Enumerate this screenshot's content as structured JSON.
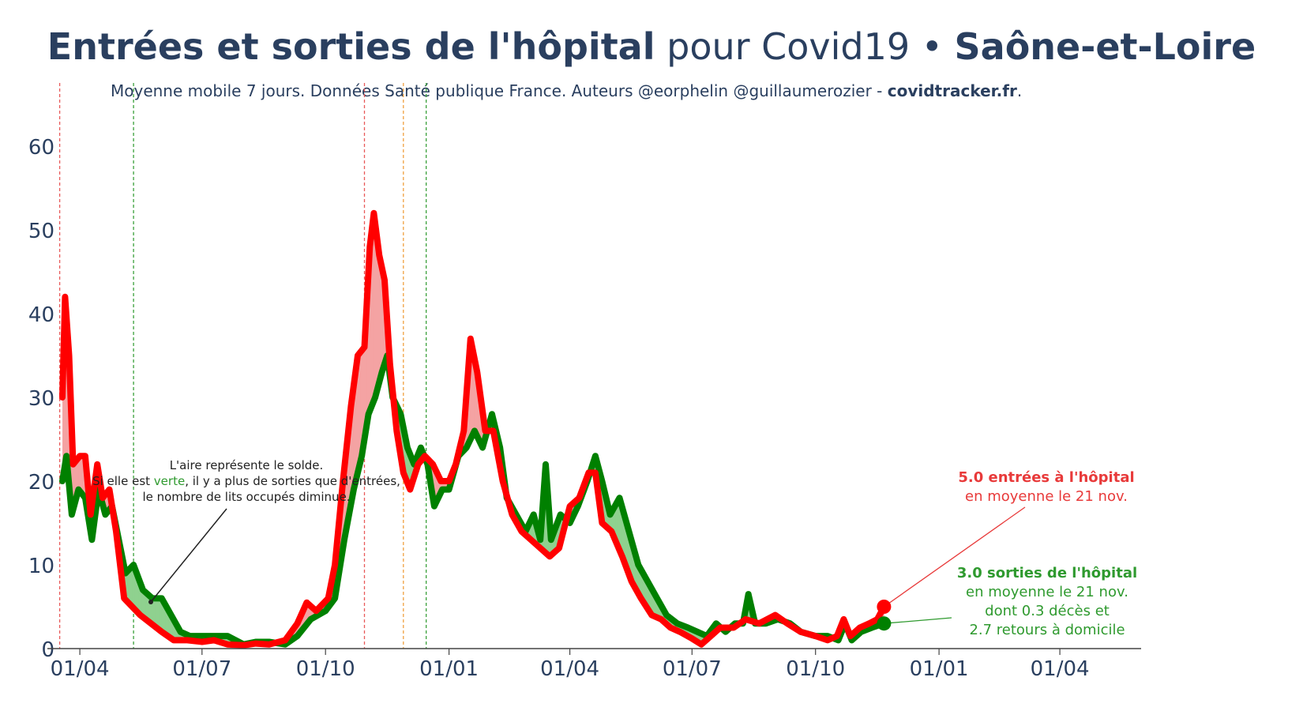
{
  "title": {
    "part1": "Entrées et sorties de l'hôpital",
    "part2": " pour Covid19 • ",
    "part3": "Saône-et-Loire"
  },
  "subtitle": {
    "text": "Moyenne mobile 7 jours. Données Santé publique France. Auteurs @eorphelin @guillaumerozier - ",
    "site": "covidtracker.fr",
    "end": "."
  },
  "annotations": {
    "explain_line1": "L'aire représente le solde.",
    "explain_line2a": "Si elle est ",
    "explain_line2_green": "verte",
    "explain_line2b": ", il y a plus de sorties que d'entrées,",
    "explain_line3": "le nombre de lits occupés diminue.",
    "entries_bold": "5.0 entrées à l'hôpital",
    "entries_sub": "en moyenne le 21 nov.",
    "exits_bold": "3.0 sorties de l'hôpital",
    "exits_sub1": "en moyenne le 21 nov.",
    "exits_sub2": "dont 0.3 décès et",
    "exits_sub3": "2.7 retours à domicile"
  },
  "colors": {
    "entries": "#ff0000",
    "exits": "#008000",
    "fill_red": "#f4a3a3",
    "fill_green": "#8fd18f",
    "text": "#2a3f5f",
    "annot_red": "#e83a3a",
    "annot_green": "#2f9a2f"
  },
  "chart_data": {
    "type": "line",
    "x_start": "2020-03-19",
    "y_range": [
      0,
      67
    ],
    "y_ticks": [
      0,
      10,
      20,
      30,
      40,
      50,
      60
    ],
    "x_ticks": [
      "01/04",
      "01/07",
      "01/10",
      "01/01",
      "01/04",
      "01/07",
      "01/10",
      "01/01",
      "01/04"
    ],
    "x_tick_dates": [
      "2020-04-01",
      "2020-07-01",
      "2020-10-01",
      "2021-01-01",
      "2021-04-01",
      "2021-07-01",
      "2021-10-01",
      "2022-01-01",
      "2022-04-01"
    ],
    "vertical_lines": [
      {
        "date": "2020-03-17",
        "color": "#e85a5a"
      },
      {
        "date": "2020-05-11",
        "color": "#3aa03a"
      },
      {
        "date": "2020-10-30",
        "color": "#e85a5a"
      },
      {
        "date": "2020-11-28",
        "color": "#f0a040"
      },
      {
        "date": "2020-12-15",
        "color": "#3aa03a"
      }
    ],
    "series": [
      {
        "name": "entrées à l'hôpital",
        "color": "#ff0000",
        "points": [
          [
            "2020-03-19",
            30
          ],
          [
            "2020-03-21",
            42
          ],
          [
            "2020-03-24",
            35
          ],
          [
            "2020-03-27",
            22
          ],
          [
            "2020-04-01",
            23
          ],
          [
            "2020-04-05",
            23
          ],
          [
            "2020-04-09",
            16
          ],
          [
            "2020-04-14",
            22
          ],
          [
            "2020-04-18",
            18
          ],
          [
            "2020-04-23",
            19
          ],
          [
            "2020-04-28",
            14
          ],
          [
            "2020-05-04",
            6
          ],
          [
            "2020-05-10",
            5
          ],
          [
            "2020-05-16",
            4
          ],
          [
            "2020-05-24",
            3
          ],
          [
            "2020-06-01",
            2
          ],
          [
            "2020-06-10",
            1
          ],
          [
            "2020-06-20",
            1
          ],
          [
            "2020-07-01",
            0.8
          ],
          [
            "2020-07-10",
            1
          ],
          [
            "2020-07-20",
            0.5
          ],
          [
            "2020-08-01",
            0.4
          ],
          [
            "2020-08-10",
            0.6
          ],
          [
            "2020-08-20",
            0.5
          ],
          [
            "2020-09-01",
            1
          ],
          [
            "2020-09-10",
            3
          ],
          [
            "2020-09-17",
            5.5
          ],
          [
            "2020-09-24",
            4.5
          ],
          [
            "2020-10-03",
            6
          ],
          [
            "2020-10-08",
            10
          ],
          [
            "2020-10-14",
            20
          ],
          [
            "2020-10-20",
            29
          ],
          [
            "2020-10-25",
            35
          ],
          [
            "2020-10-30",
            36
          ],
          [
            "2020-11-03",
            48
          ],
          [
            "2020-11-06",
            52
          ],
          [
            "2020-11-10",
            47
          ],
          [
            "2020-11-14",
            44
          ],
          [
            "2020-11-18",
            34
          ],
          [
            "2020-11-23",
            26
          ],
          [
            "2020-11-28",
            21
          ],
          [
            "2020-12-03",
            19
          ],
          [
            "2020-12-09",
            22
          ],
          [
            "2020-12-14",
            23
          ],
          [
            "2020-12-20",
            22
          ],
          [
            "2020-12-26",
            20
          ],
          [
            "2021-01-01",
            20
          ],
          [
            "2021-01-06",
            22
          ],
          [
            "2021-01-12",
            26
          ],
          [
            "2021-01-17",
            37
          ],
          [
            "2021-01-22",
            33
          ],
          [
            "2021-01-28",
            26
          ],
          [
            "2021-02-03",
            26
          ],
          [
            "2021-02-10",
            20
          ],
          [
            "2021-02-17",
            16
          ],
          [
            "2021-02-24",
            14
          ],
          [
            "2021-03-03",
            13
          ],
          [
            "2021-03-10",
            12
          ],
          [
            "2021-03-17",
            11
          ],
          [
            "2021-03-24",
            12
          ],
          [
            "2021-04-01",
            17
          ],
          [
            "2021-04-08",
            18
          ],
          [
            "2021-04-15",
            21
          ],
          [
            "2021-04-20",
            21
          ],
          [
            "2021-04-25",
            15
          ],
          [
            "2021-05-02",
            14
          ],
          [
            "2021-05-10",
            11
          ],
          [
            "2021-05-17",
            8
          ],
          [
            "2021-05-24",
            6
          ],
          [
            "2021-06-01",
            4
          ],
          [
            "2021-06-08",
            3.5
          ],
          [
            "2021-06-15",
            2.5
          ],
          [
            "2021-06-22",
            2
          ],
          [
            "2021-07-01",
            1.2
          ],
          [
            "2021-07-08",
            0.5
          ],
          [
            "2021-07-15",
            1.5
          ],
          [
            "2021-07-22",
            2.5
          ],
          [
            "2021-08-01",
            2.5
          ],
          [
            "2021-08-10",
            3.5
          ],
          [
            "2021-08-20",
            3
          ],
          [
            "2021-09-01",
            4
          ],
          [
            "2021-09-10",
            3
          ],
          [
            "2021-09-20",
            2
          ],
          [
            "2021-10-01",
            1.5
          ],
          [
            "2021-10-10",
            1
          ],
          [
            "2021-10-17",
            1.5
          ],
          [
            "2021-10-22",
            3.5
          ],
          [
            "2021-10-27",
            1.5
          ],
          [
            "2021-11-03",
            2.5
          ],
          [
            "2021-11-10",
            3
          ],
          [
            "2021-11-16",
            3.5
          ],
          [
            "2021-11-21",
            5
          ]
        ]
      },
      {
        "name": "sorties de l'hôpital",
        "color": "#008000",
        "points": [
          [
            "2020-03-19",
            20
          ],
          [
            "2020-03-22",
            23
          ],
          [
            "2020-03-26",
            16
          ],
          [
            "2020-03-31",
            19
          ],
          [
            "2020-04-05",
            18
          ],
          [
            "2020-04-10",
            13
          ],
          [
            "2020-04-15",
            19
          ],
          [
            "2020-04-20",
            16
          ],
          [
            "2020-04-25",
            17
          ],
          [
            "2020-04-30",
            13
          ],
          [
            "2020-05-05",
            9
          ],
          [
            "2020-05-11",
            10
          ],
          [
            "2020-05-18",
            7
          ],
          [
            "2020-05-25",
            6
          ],
          [
            "2020-06-01",
            6
          ],
          [
            "2020-06-08",
            4
          ],
          [
            "2020-06-15",
            2
          ],
          [
            "2020-06-22",
            1.5
          ],
          [
            "2020-07-01",
            1.5
          ],
          [
            "2020-07-10",
            1.5
          ],
          [
            "2020-07-20",
            1.5
          ],
          [
            "2020-08-01",
            0.5
          ],
          [
            "2020-08-10",
            0.8
          ],
          [
            "2020-08-20",
            0.8
          ],
          [
            "2020-09-01",
            0.5
          ],
          [
            "2020-09-10",
            1.5
          ],
          [
            "2020-09-20",
            3.5
          ],
          [
            "2020-10-01",
            4.5
          ],
          [
            "2020-10-08",
            6
          ],
          [
            "2020-10-15",
            13
          ],
          [
            "2020-10-22",
            19
          ],
          [
            "2020-10-28",
            23
          ],
          [
            "2020-11-02",
            28
          ],
          [
            "2020-11-07",
            30
          ],
          [
            "2020-11-12",
            33
          ],
          [
            "2020-11-16",
            35
          ],
          [
            "2020-11-20",
            30
          ],
          [
            "2020-11-26",
            28
          ],
          [
            "2020-12-01",
            24
          ],
          [
            "2020-12-06",
            22
          ],
          [
            "2020-12-11",
            24
          ],
          [
            "2020-12-16",
            22
          ],
          [
            "2020-12-21",
            17
          ],
          [
            "2020-12-27",
            19
          ],
          [
            "2021-01-01",
            19
          ],
          [
            "2021-01-08",
            23
          ],
          [
            "2021-01-14",
            24
          ],
          [
            "2021-01-20",
            26
          ],
          [
            "2021-01-26",
            24
          ],
          [
            "2021-02-02",
            28
          ],
          [
            "2021-02-08",
            24
          ],
          [
            "2021-02-13",
            18
          ],
          [
            "2021-02-20",
            16
          ],
          [
            "2021-02-27",
            14
          ],
          [
            "2021-03-05",
            16
          ],
          [
            "2021-03-10",
            13
          ],
          [
            "2021-03-14",
            22
          ],
          [
            "2021-03-18",
            13
          ],
          [
            "2021-03-25",
            16
          ],
          [
            "2021-04-01",
            15
          ],
          [
            "2021-04-07",
            17
          ],
          [
            "2021-04-14",
            20
          ],
          [
            "2021-04-20",
            23
          ],
          [
            "2021-04-25",
            20
          ],
          [
            "2021-05-01",
            16
          ],
          [
            "2021-05-08",
            18
          ],
          [
            "2021-05-15",
            14
          ],
          [
            "2021-05-22",
            10
          ],
          [
            "2021-05-29",
            8
          ],
          [
            "2021-06-05",
            6
          ],
          [
            "2021-06-12",
            4
          ],
          [
            "2021-06-20",
            3
          ],
          [
            "2021-06-28",
            2.5
          ],
          [
            "2021-07-05",
            2
          ],
          [
            "2021-07-12",
            1.5
          ],
          [
            "2021-07-19",
            3
          ],
          [
            "2021-07-26",
            2
          ],
          [
            "2021-08-02",
            3
          ],
          [
            "2021-08-08",
            3
          ],
          [
            "2021-08-12",
            6.5
          ],
          [
            "2021-08-17",
            3
          ],
          [
            "2021-08-25",
            3
          ],
          [
            "2021-09-03",
            3.5
          ],
          [
            "2021-09-12",
            3
          ],
          [
            "2021-09-20",
            2
          ],
          [
            "2021-10-01",
            1.5
          ],
          [
            "2021-10-10",
            1.5
          ],
          [
            "2021-10-18",
            1
          ],
          [
            "2021-10-23",
            3
          ],
          [
            "2021-10-28",
            1
          ],
          [
            "2021-11-04",
            2
          ],
          [
            "2021-11-12",
            2.5
          ],
          [
            "2021-11-21",
            3
          ]
        ]
      }
    ],
    "last_point": {
      "date": "2021-11-21",
      "entries": 5.0,
      "exits": 3.0,
      "deaths": 0.3,
      "home": 2.7
    }
  }
}
